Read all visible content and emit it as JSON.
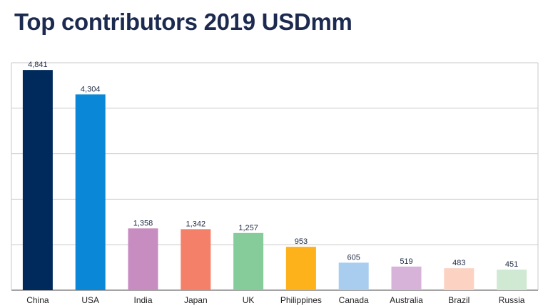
{
  "chart_data": {
    "type": "bar",
    "title": "Top contributors 2019 USDmm",
    "categories": [
      "China",
      "USA",
      "India",
      "Japan",
      "UK",
      "Philippines",
      "Canada",
      "Australia",
      "Brazil",
      "Russia"
    ],
    "values": [
      4841,
      4304,
      1358,
      1342,
      1257,
      953,
      605,
      519,
      483,
      451
    ],
    "value_labels": [
      "4,841",
      "4,304",
      "1,358",
      "1,342",
      "1,257",
      "953",
      "605",
      "519",
      "483",
      "451"
    ],
    "colors": [
      "#002a5c",
      "#0a87d6",
      "#c78cc0",
      "#f4806a",
      "#86cc9a",
      "#fdb11a",
      "#a8cdef",
      "#d8b3d9",
      "#fcd2c3",
      "#cfe9d3"
    ],
    "xlabel": "",
    "ylabel": "",
    "ylim": [
      0,
      5000
    ],
    "grid": true,
    "y_tick_labels_shown": false,
    "legend": "none"
  }
}
